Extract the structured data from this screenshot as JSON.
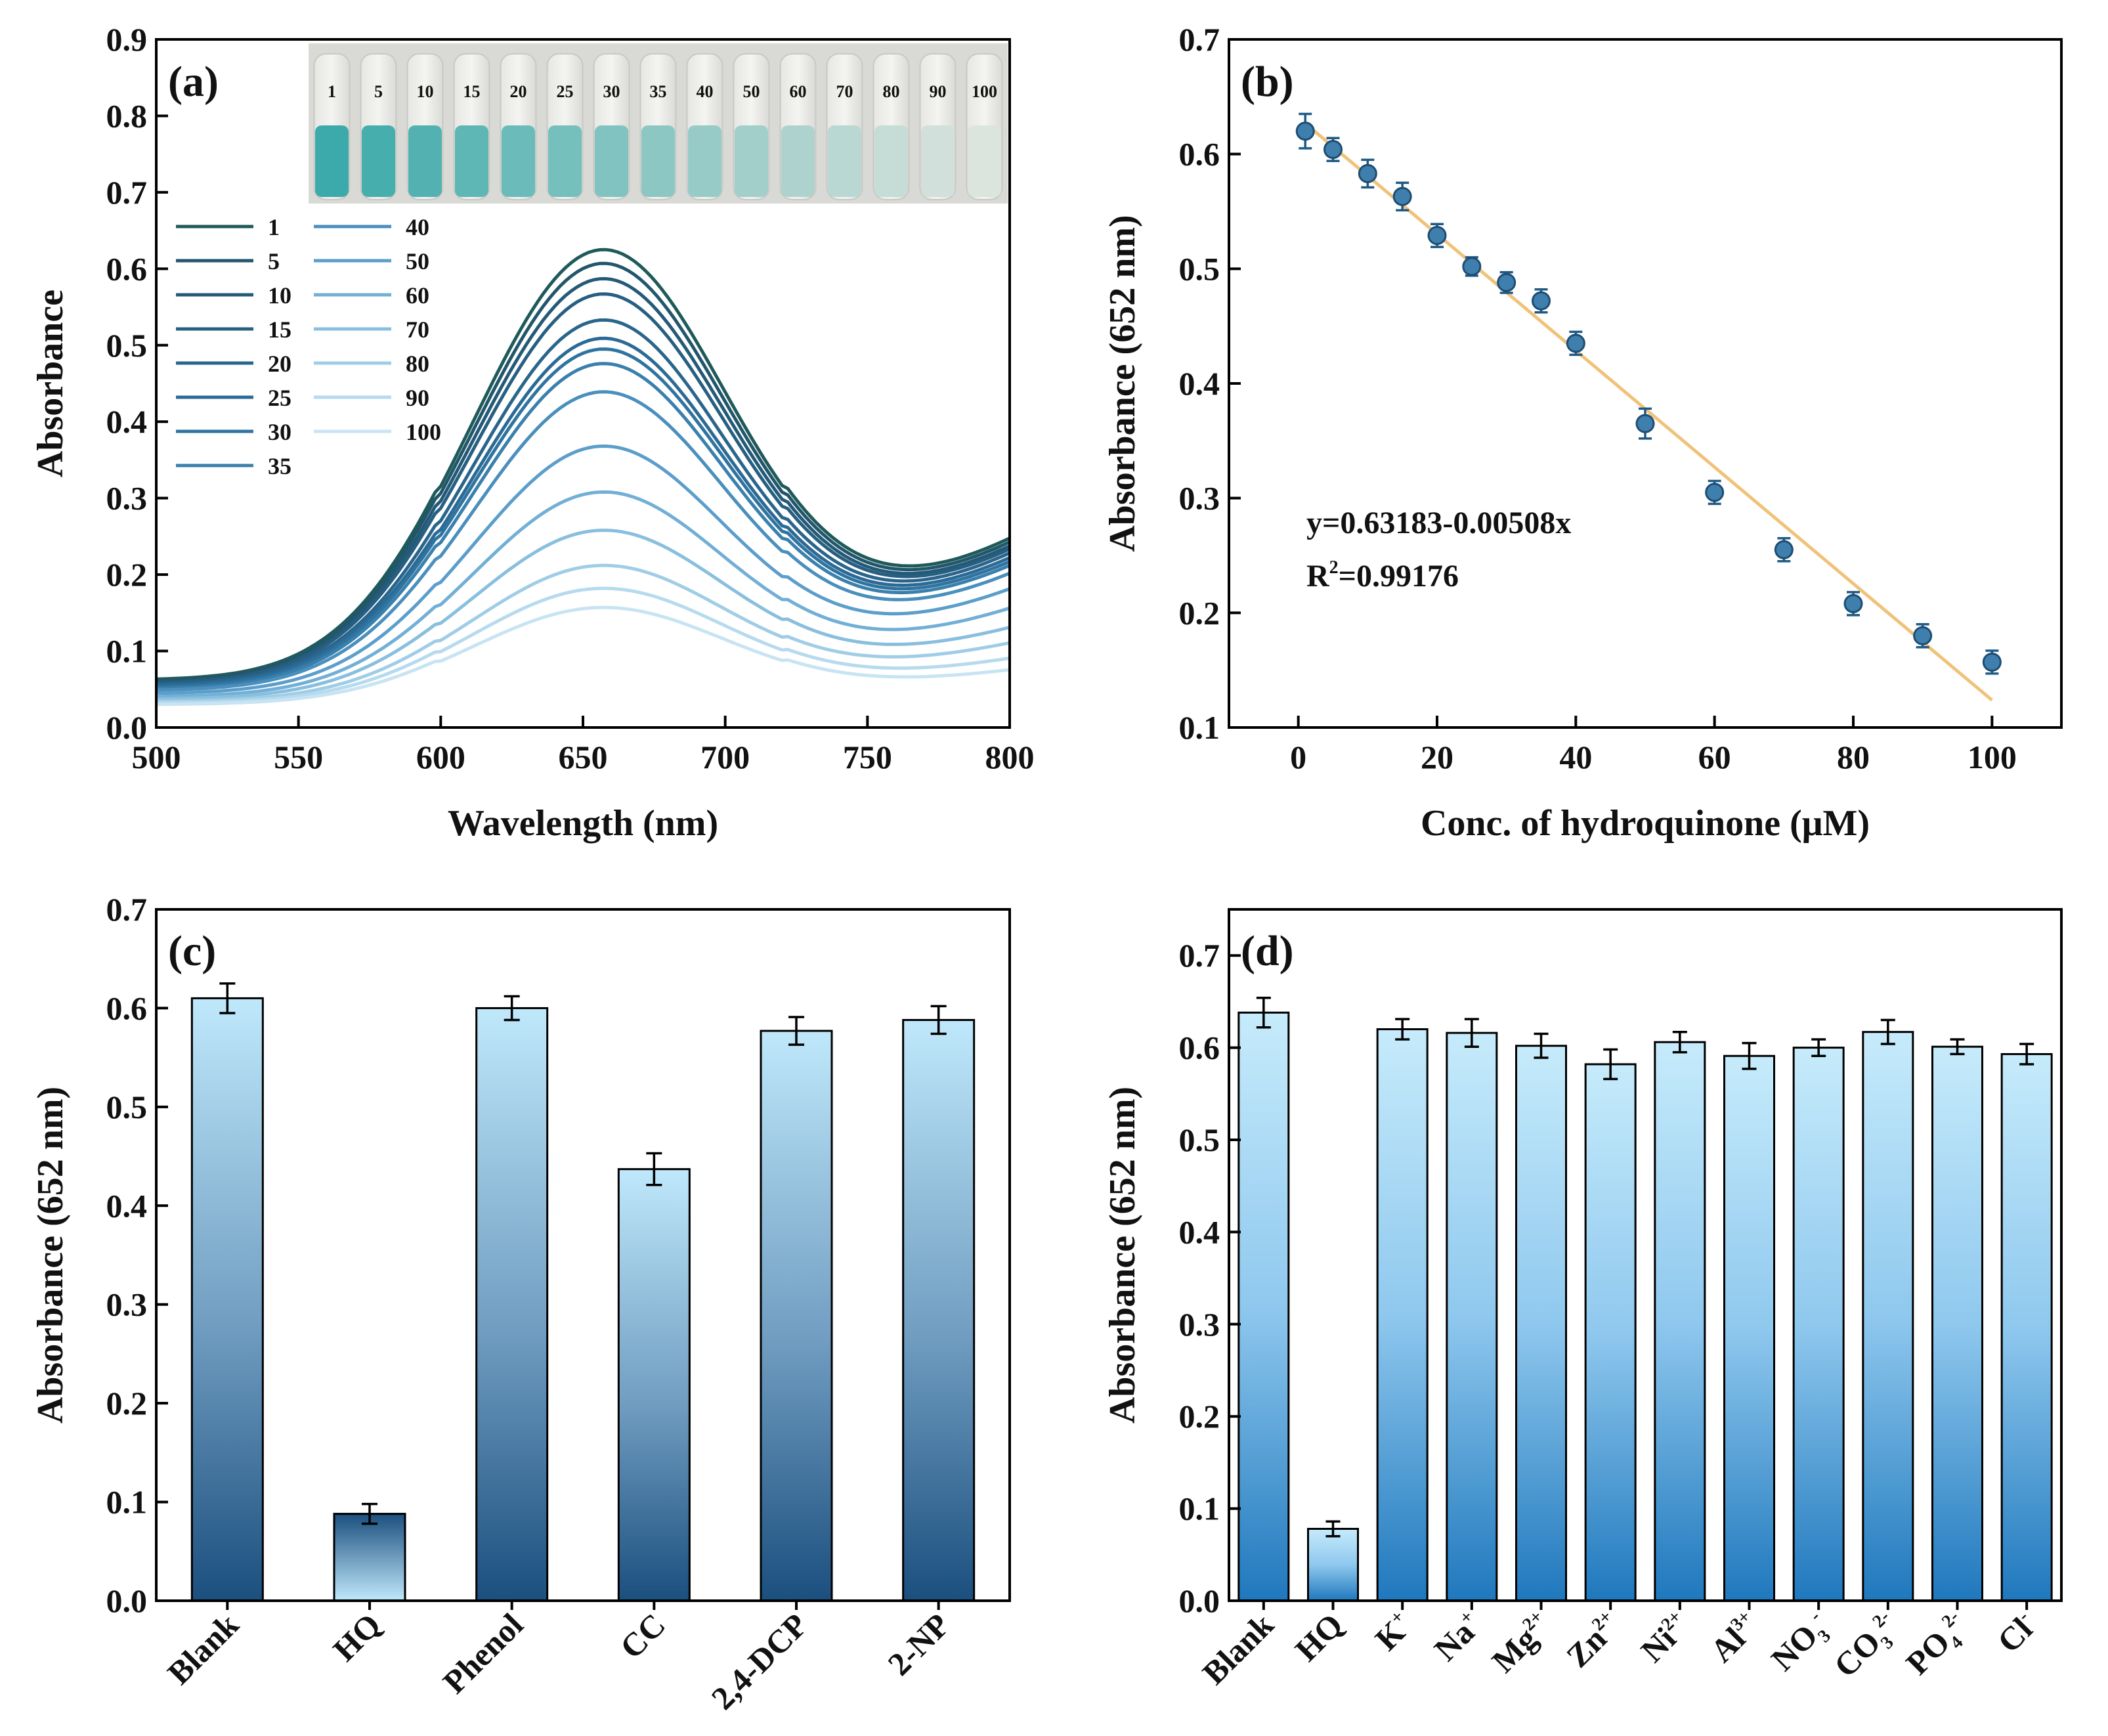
{
  "chart_data": [
    {
      "panel": "(a)",
      "type": "line",
      "xlabel": "Wavelength (nm)",
      "ylabel": "Absorbance",
      "xlim": [
        500,
        800
      ],
      "ylim": [
        0.0,
        0.9
      ],
      "xticks": [
        "500",
        "550",
        "600",
        "650",
        "700",
        "750",
        "800"
      ],
      "yticks": [
        "0.0",
        "0.1",
        "0.2",
        "0.3",
        "0.4",
        "0.5",
        "0.6",
        "0.7",
        "0.8",
        "0.9"
      ],
      "legend": [
        "1",
        "5",
        "10",
        "15",
        "20",
        "25",
        "30",
        "35",
        "40",
        "50",
        "60",
        "70",
        "80",
        "90",
        "100"
      ],
      "series": [
        {
          "name": "1",
          "color": "#1f5a5a",
          "peak": 0.625,
          "base500": 0.062,
          "trough": 0.17,
          "end800": 0.245
        },
        {
          "name": "5",
          "color": "#22566b",
          "peak": 0.607,
          "base500": 0.06,
          "trough": 0.166,
          "end800": 0.24
        },
        {
          "name": "10",
          "color": "#245a77",
          "peak": 0.587,
          "base500": 0.058,
          "trough": 0.162,
          "end800": 0.235
        },
        {
          "name": "15",
          "color": "#275f82",
          "peak": 0.567,
          "base500": 0.057,
          "trough": 0.158,
          "end800": 0.231
        },
        {
          "name": "20",
          "color": "#2a658c",
          "peak": 0.533,
          "base500": 0.055,
          "trough": 0.153,
          "end800": 0.226
        },
        {
          "name": "25",
          "color": "#2c6a96",
          "peak": 0.509,
          "base500": 0.054,
          "trough": 0.149,
          "end800": 0.22
        },
        {
          "name": "30",
          "color": "#2f74a0",
          "peak": 0.495,
          "base500": 0.052,
          "trough": 0.145,
          "end800": 0.215
        },
        {
          "name": "35",
          "color": "#3a80ad",
          "peak": 0.476,
          "base500": 0.05,
          "trough": 0.14,
          "end800": 0.21
        },
        {
          "name": "40",
          "color": "#4a8fbd",
          "peak": 0.439,
          "base500": 0.048,
          "trough": 0.133,
          "end800": 0.2
        },
        {
          "name": "50",
          "color": "#5c9ecb",
          "peak": 0.368,
          "base500": 0.044,
          "trough": 0.12,
          "end800": 0.18
        },
        {
          "name": "60",
          "color": "#72afd6",
          "peak": 0.308,
          "base500": 0.04,
          "trough": 0.105,
          "end800": 0.155
        },
        {
          "name": "70",
          "color": "#89bfde",
          "peak": 0.258,
          "base500": 0.037,
          "trough": 0.09,
          "end800": 0.13
        },
        {
          "name": "80",
          "color": "#a0cde6",
          "peak": 0.212,
          "base500": 0.034,
          "trough": 0.075,
          "end800": 0.11
        },
        {
          "name": "90",
          "color": "#b6daee",
          "peak": 0.182,
          "base500": 0.032,
          "trough": 0.065,
          "end800": 0.09
        },
        {
          "name": "100",
          "color": "#c8e4f3",
          "peak": 0.157,
          "base500": 0.03,
          "trough": 0.055,
          "end800": 0.075
        }
      ],
      "inset": {
        "vial_labels": [
          "1",
          "5",
          "10",
          "15",
          "20",
          "25",
          "30",
          "35",
          "40",
          "50",
          "60",
          "70",
          "80",
          "90",
          "100"
        ]
      }
    },
    {
      "panel": "(b)",
      "type": "scatter",
      "xlabel": "Conc. of hydroquinone (μM)",
      "ylabel": "Absorbance (652 nm)",
      "xlim": [
        -10,
        110
      ],
      "ylim": [
        0.1,
        0.7
      ],
      "xticks": [
        "0",
        "20",
        "40",
        "60",
        "80",
        "100"
      ],
      "yticks": [
        "0.1",
        "0.2",
        "0.3",
        "0.4",
        "0.5",
        "0.6",
        "0.7"
      ],
      "x": [
        1,
        5,
        10,
        15,
        20,
        25,
        30,
        35,
        40,
        50,
        60,
        70,
        80,
        90,
        100
      ],
      "y": [
        0.62,
        0.604,
        0.583,
        0.563,
        0.529,
        0.502,
        0.488,
        0.472,
        0.435,
        0.365,
        0.305,
        0.255,
        0.208,
        0.18,
        0.157
      ],
      "err": [
        0.015,
        0.01,
        0.012,
        0.012,
        0.01,
        0.008,
        0.009,
        0.01,
        0.01,
        0.013,
        0.01,
        0.01,
        0.01,
        0.01,
        0.01
      ],
      "fit": {
        "intercept": 0.63183,
        "slope": -0.00508,
        "x_range": [
          1,
          100
        ]
      },
      "equation": "y=0.63183-0.00508x",
      "r2_label": "R",
      "r2_sup": "2",
      "r2_value": "=0.99176"
    },
    {
      "panel": "(c)",
      "type": "bar",
      "ylabel": "Absorbance (652 nm)",
      "ylim": [
        0.0,
        0.7
      ],
      "yticks": [
        "0.0",
        "0.1",
        "0.2",
        "0.3",
        "0.4",
        "0.5",
        "0.6",
        "0.7"
      ],
      "categories": [
        "Blank",
        "HQ",
        "Phenol",
        "CC",
        "2,4-DCP",
        "2-NP"
      ],
      "values": [
        0.61,
        0.088,
        0.6,
        0.437,
        0.577,
        0.588
      ],
      "err": [
        0.015,
        0.01,
        0.012,
        0.016,
        0.014,
        0.014
      ]
    },
    {
      "panel": "(d)",
      "type": "bar",
      "ylabel": "Absorbance (652 nm)",
      "ylim": [
        0.0,
        0.75
      ],
      "yticks": [
        "0.0",
        "0.1",
        "0.2",
        "0.3",
        "0.4",
        "0.5",
        "0.6",
        "0.7"
      ],
      "categories": [
        {
          "base": "Blank",
          "sup": "",
          "sub": ""
        },
        {
          "base": "HQ",
          "sup": "",
          "sub": ""
        },
        {
          "base": "K",
          "sup": "+",
          "sub": ""
        },
        {
          "base": "Na",
          "sup": "+",
          "sub": ""
        },
        {
          "base": "Mg",
          "sup": "2+",
          "sub": ""
        },
        {
          "base": "Zn",
          "sup": "2+",
          "sub": ""
        },
        {
          "base": "Ni",
          "sup": "2+",
          "sub": ""
        },
        {
          "base": "Al",
          "sup": "3+",
          "sub": ""
        },
        {
          "base": "NO",
          "sup": "-",
          "sub": "3"
        },
        {
          "base": "CO",
          "sup": "2-",
          "sub": "3"
        },
        {
          "base": "PO",
          "sup": "2-",
          "sub": "4"
        },
        {
          "base": "Cl",
          "sup": "-",
          "sub": ""
        }
      ],
      "values": [
        0.638,
        0.078,
        0.62,
        0.616,
        0.602,
        0.582,
        0.606,
        0.591,
        0.6,
        0.617,
        0.601,
        0.593
      ],
      "err": [
        0.016,
        0.008,
        0.011,
        0.015,
        0.013,
        0.016,
        0.011,
        0.014,
        0.009,
        0.013,
        0.008,
        0.011
      ]
    }
  ]
}
